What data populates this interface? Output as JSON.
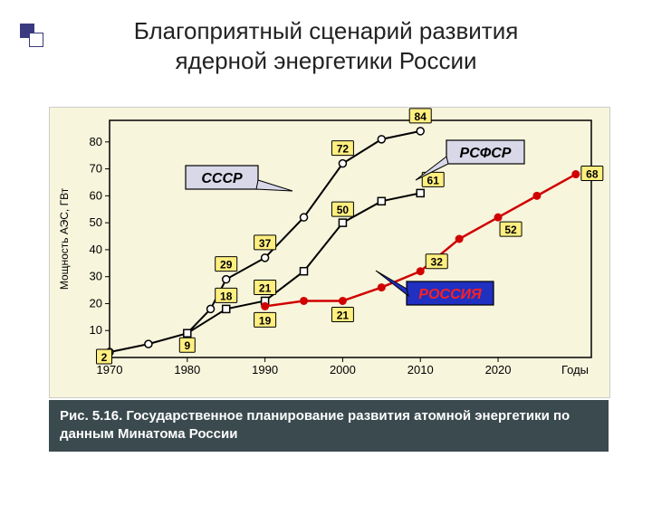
{
  "title_line1": "Благоприятный сценарий развития",
  "title_line2": "ядерной энергетики России",
  "caption": "Рис. 5.16. Государственное планирование развития атомной энергетики по данным Минатома России",
  "chart": {
    "type": "line",
    "background_color": "#f7f5dc",
    "plot_border_color": "#000000",
    "x_axis": {
      "label": "Годы",
      "ticks": [
        1970,
        1980,
        1990,
        2000,
        2010,
        2020
      ],
      "min": 1970,
      "max": 2032
    },
    "y_axis": {
      "label": "Мощность АЭС, ГВт",
      "ticks": [
        10,
        20,
        30,
        40,
        50,
        60,
        70,
        80
      ],
      "min": 0,
      "max": 88
    },
    "series": {
      "ussr": {
        "label": "СССР",
        "color": "#000000",
        "marker": "open-circle",
        "line_width": 2,
        "label_fill": "#d8d8e8",
        "points": [
          {
            "x": 1970,
            "y": 2,
            "tag": "2"
          },
          {
            "x": 1975,
            "y": 5
          },
          {
            "x": 1980,
            "y": 9,
            "tag": "9"
          },
          {
            "x": 1983,
            "y": 18
          },
          {
            "x": 1985,
            "y": 29,
            "tag": "29"
          },
          {
            "x": 1990,
            "y": 37,
            "tag": "37"
          },
          {
            "x": 1995,
            "y": 52
          },
          {
            "x": 2000,
            "y": 72,
            "tag": "72"
          },
          {
            "x": 2005,
            "y": 81
          },
          {
            "x": 2010,
            "y": 84,
            "tag": "84"
          }
        ]
      },
      "rsfsr": {
        "label": "РСФСР",
        "color": "#000000",
        "marker": "open-square",
        "line_width": 2,
        "label_fill": "#d8d8e8",
        "points": [
          {
            "x": 1980,
            "y": 9
          },
          {
            "x": 1985,
            "y": 18,
            "tag": "18"
          },
          {
            "x": 1990,
            "y": 21,
            "tag": "21"
          },
          {
            "x": 1995,
            "y": 32
          },
          {
            "x": 2000,
            "y": 50,
            "tag": "50"
          },
          {
            "x": 2005,
            "y": 58
          },
          {
            "x": 2010,
            "y": 61,
            "tag": "61"
          }
        ]
      },
      "russia": {
        "label": "РОССИЯ",
        "color": "#d00000",
        "marker": "filled-circle",
        "line_width": 2.5,
        "label_fill": "#2030c0",
        "label_text_color": "#ff2020",
        "value_label_color": "#c00000",
        "points": [
          {
            "x": 1990,
            "y": 19,
            "tag": "19"
          },
          {
            "x": 1995,
            "y": 21
          },
          {
            "x": 2000,
            "y": 21,
            "tag": "21"
          },
          {
            "x": 2005,
            "y": 26
          },
          {
            "x": 2010,
            "y": 32,
            "tag": "32"
          },
          {
            "x": 2015,
            "y": 44
          },
          {
            "x": 2020,
            "y": 52,
            "tag": "52"
          },
          {
            "x": 2025,
            "y": 60
          },
          {
            "x": 2030,
            "y": 68,
            "tag": "68"
          }
        ]
      }
    }
  }
}
